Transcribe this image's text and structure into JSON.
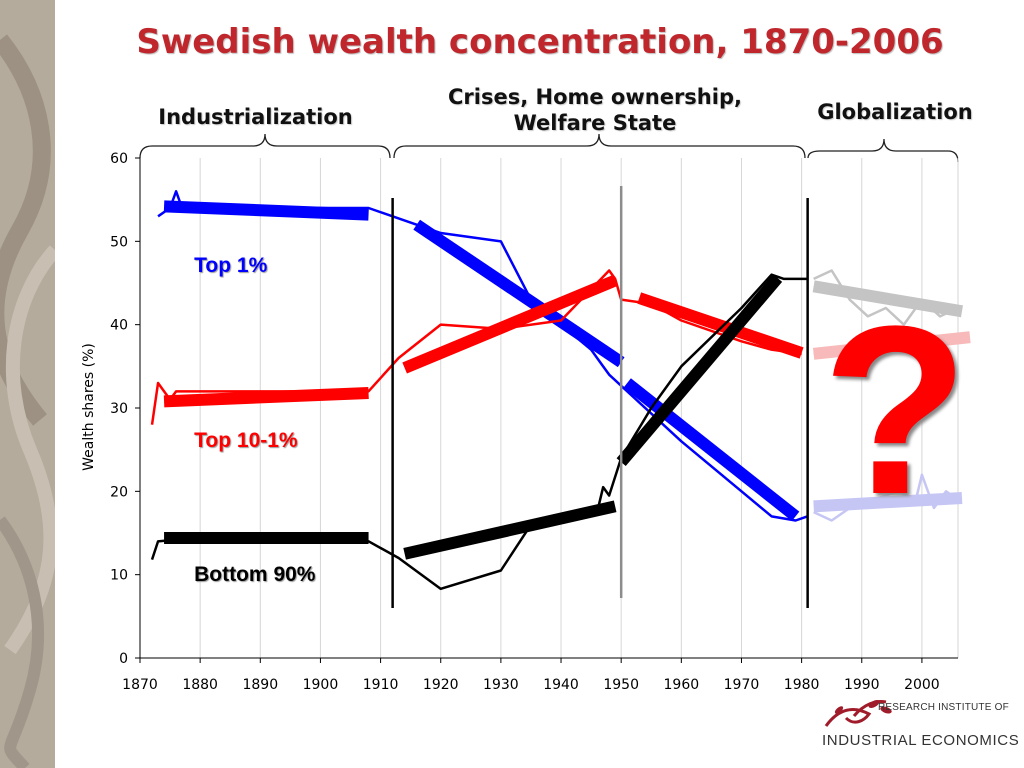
{
  "slide": {
    "title": "Swedish wealth concentration, 1870-2006",
    "periods": [
      {
        "label": "Industrialization"
      },
      {
        "label": "Crises, Home ownership,\nWelfare State"
      },
      {
        "label": "Globalization"
      }
    ],
    "question_mark": "?",
    "logo": {
      "line1": "RESEARCH INSTITUTE OF",
      "line2": "INDUSTRIAL ECONOMICS"
    },
    "colors": {
      "title": "#c0272d",
      "top1": "#0000ff",
      "top10_1": "#ff0000",
      "bottom90": "#000000",
      "side_panel": "#b5ab9c"
    }
  },
  "chart_data": {
    "type": "line",
    "ylabel": "Wealth shares (%)",
    "xlabel": "",
    "xlim": [
      1870,
      2006
    ],
    "ylim": [
      0,
      60
    ],
    "xticks": [
      1870,
      1880,
      1890,
      1900,
      1910,
      1920,
      1930,
      1940,
      1950,
      1960,
      1970,
      1980,
      1990,
      2000
    ],
    "yticks": [
      0,
      10,
      20,
      30,
      40,
      50,
      60
    ],
    "grid": "vertical",
    "period_dividers": [
      1912,
      1950,
      1981
    ],
    "series": [
      {
        "name": "Top 1%",
        "color": "#0000ff",
        "label_position": [
          1879,
          47
        ],
        "points": [
          [
            1873,
            53
          ],
          [
            1875,
            54
          ],
          [
            1876,
            56
          ],
          [
            1877,
            54
          ],
          [
            1908,
            54
          ],
          [
            1916,
            52
          ],
          [
            1920,
            51
          ],
          [
            1930,
            50
          ],
          [
            1935,
            43
          ],
          [
            1945,
            37
          ],
          [
            1947,
            35
          ],
          [
            1948,
            34
          ],
          [
            1951,
            32
          ],
          [
            1960,
            26
          ],
          [
            1970,
            20
          ],
          [
            1975,
            17
          ],
          [
            1979,
            16.5
          ],
          [
            1981,
            17
          ]
        ],
        "gray_points": [
          [
            1982,
            17.5
          ],
          [
            1985,
            16.5
          ],
          [
            1988,
            18
          ],
          [
            1992,
            19
          ],
          [
            1996,
            20
          ],
          [
            1999,
            19
          ],
          [
            2000,
            22
          ],
          [
            2002,
            18
          ],
          [
            2004,
            20
          ],
          [
            2006,
            19
          ]
        ],
        "trends": [
          [
            [
              1874,
              54.2
            ],
            [
              1908,
              53.2
            ]
          ],
          [
            [
              1916,
              52
            ],
            [
              1950,
              35.5
            ]
          ],
          [
            [
              1951,
              33
            ],
            [
              1979,
              17
            ]
          ],
          [
            [
              1982,
              18.2
            ],
            [
              2006,
              19.2
            ]
          ]
        ]
      },
      {
        "name": "Top 10-1%",
        "color": "#ff0000",
        "label_position": [
          1879,
          26
        ],
        "points": [
          [
            1872,
            28
          ],
          [
            1873,
            33
          ],
          [
            1875,
            31
          ],
          [
            1876,
            32
          ],
          [
            1908,
            32
          ],
          [
            1913,
            36
          ],
          [
            1920,
            40
          ],
          [
            1930,
            39.5
          ],
          [
            1940,
            40.5
          ],
          [
            1946,
            45
          ],
          [
            1948,
            46.5
          ],
          [
            1949,
            45.5
          ],
          [
            1950,
            43
          ],
          [
            1955,
            42.5
          ],
          [
            1960,
            40.5
          ],
          [
            1970,
            38
          ],
          [
            1975,
            37
          ],
          [
            1980,
            36.5
          ]
        ],
        "gray_points": [
          [
            1982,
            36.5
          ],
          [
            1985,
            37
          ],
          [
            1990,
            37.5
          ],
          [
            1995,
            38
          ],
          [
            2000,
            38.5
          ],
          [
            2006,
            38
          ]
        ],
        "trends": [
          [
            [
              1874,
              30.8
            ],
            [
              1908,
              31.8
            ]
          ],
          [
            [
              1914,
              34.8
            ],
            [
              1949,
              45.3
            ]
          ],
          [
            [
              1953,
              43.2
            ],
            [
              1980,
              36.6
            ]
          ],
          [
            [
              1982,
              36.5
            ],
            [
              2006,
              38.5
            ]
          ]
        ]
      },
      {
        "name": "Bottom 90%",
        "color": "#000000",
        "label_position": [
          1879,
          10
        ],
        "points": [
          [
            1872,
            11.8
          ],
          [
            1873,
            14
          ],
          [
            1876,
            14.2
          ],
          [
            1908,
            14
          ],
          [
            1913,
            12
          ],
          [
            1920,
            8.3
          ],
          [
            1930,
            10.5
          ],
          [
            1935,
            16
          ],
          [
            1940,
            16.5
          ],
          [
            1946,
            17.5
          ],
          [
            1947,
            20.5
          ],
          [
            1948,
            19.5
          ],
          [
            1950,
            24
          ],
          [
            1955,
            30
          ],
          [
            1960,
            35
          ],
          [
            1970,
            42
          ],
          [
            1975,
            46
          ],
          [
            1977,
            45.5
          ],
          [
            1981,
            45.5
          ]
        ],
        "gray_points": [
          [
            1982,
            45.5
          ],
          [
            1985,
            46.5
          ],
          [
            1988,
            43
          ],
          [
            1991,
            41
          ],
          [
            1994,
            42
          ],
          [
            1997,
            40
          ],
          [
            2000,
            43
          ],
          [
            2003,
            41
          ],
          [
            2006,
            42
          ]
        ],
        "trends": [
          [
            [
              1874,
              14.4
            ],
            [
              1908,
              14.4
            ]
          ],
          [
            [
              1914,
              12.5
            ],
            [
              1949,
              18.2
            ]
          ],
          [
            [
              1950,
              23.5
            ],
            [
              1976,
              45.6
            ]
          ],
          [
            [
              1982,
              44.6
            ],
            [
              2006,
              41.6
            ]
          ]
        ]
      }
    ]
  }
}
